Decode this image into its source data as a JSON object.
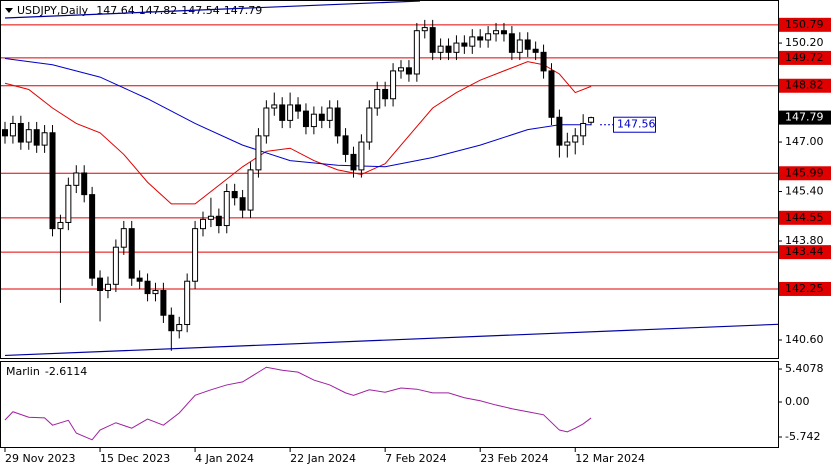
{
  "chart_data": [
    {
      "type": "candlestick",
      "title": "USDJPY,Daily",
      "categories": [
        "29 Nov 2023",
        null,
        null,
        null,
        null,
        null,
        null,
        null,
        null,
        null,
        null,
        null,
        "15 Dec 2023",
        null,
        null,
        null,
        null,
        null,
        null,
        null,
        null,
        null,
        null,
        null,
        "4 Jan 2024",
        null,
        null,
        null,
        null,
        null,
        null,
        null,
        null,
        null,
        null,
        null,
        "22 Jan 2024",
        null,
        null,
        null,
        null,
        null,
        null,
        null,
        null,
        null,
        null,
        null,
        "7 Feb 2024",
        null,
        null,
        null,
        null,
        null,
        null,
        null,
        null,
        null,
        null,
        null,
        "23 Feb 2024",
        null,
        null,
        null,
        null,
        null,
        null,
        null,
        null,
        null,
        null,
        null,
        "12 Mar 2024",
        null,
        null
      ],
      "open": [
        147.4,
        147.2,
        147.6,
        147.0,
        147.4,
        146.9,
        147.3,
        144.2,
        144.4,
        145.6,
        146.0,
        145.3,
        142.6,
        142.2,
        142.4,
        143.6,
        144.2,
        142.6,
        142.5,
        142.1,
        142.2,
        141.4,
        140.9,
        141.1,
        142.5,
        144.2,
        144.5,
        144.6,
        144.3,
        145.4,
        145.2,
        144.8,
        146.1,
        147.2,
        148.1,
        148.2,
        147.7,
        148.2,
        148.0,
        147.5,
        147.9,
        147.7,
        148.1,
        147.2,
        146.6,
        146.1,
        147.0,
        148.1,
        148.7,
        148.4,
        149.3,
        149.4,
        149.2,
        150.6,
        150.7,
        149.9,
        150.1,
        149.9,
        150.2,
        150.1,
        150.4,
        150.3,
        150.5,
        150.6,
        150.5,
        149.9,
        150.3,
        150.0,
        149.9,
        149.3,
        147.8,
        146.9,
        147.0,
        147.2,
        147.64
      ],
      "high": [
        147.65,
        147.85,
        147.85,
        147.65,
        147.65,
        147.55,
        147.55,
        144.65,
        145.85,
        146.25,
        146.25,
        145.55,
        142.85,
        142.65,
        143.85,
        144.45,
        144.45,
        142.85,
        142.75,
        142.45,
        142.45,
        141.65,
        141.35,
        142.75,
        144.45,
        144.75,
        145.2,
        144.85,
        145.65,
        145.65,
        145.45,
        146.35,
        147.45,
        148.35,
        148.6,
        148.45,
        148.6,
        148.45,
        148.25,
        148.15,
        148.15,
        148.35,
        148.35,
        147.45,
        146.85,
        147.25,
        148.35,
        148.95,
        148.95,
        149.55,
        149.65,
        149.65,
        150.85,
        150.95,
        150.95,
        150.35,
        150.35,
        150.45,
        150.45,
        150.65,
        150.65,
        150.75,
        150.85,
        150.85,
        150.75,
        150.55,
        150.55,
        150.25,
        150.15,
        149.55,
        148.05,
        147.3,
        147.45,
        147.9,
        147.82
      ],
      "low": [
        146.95,
        146.95,
        146.75,
        146.75,
        146.65,
        146.65,
        143.95,
        141.8,
        144.15,
        145.35,
        145.05,
        142.35,
        141.2,
        141.95,
        142.15,
        143.35,
        142.35,
        142.25,
        141.85,
        141.85,
        141.15,
        140.25,
        140.65,
        140.85,
        142.25,
        143.95,
        144.25,
        144.05,
        144.05,
        144.95,
        144.55,
        144.55,
        145.85,
        146.95,
        147.85,
        147.45,
        147.45,
        147.75,
        147.25,
        147.25,
        147.45,
        147.45,
        146.95,
        146.35,
        145.85,
        145.85,
        146.75,
        147.85,
        148.15,
        148.15,
        149.05,
        148.95,
        148.95,
        150.35,
        149.65,
        149.65,
        149.65,
        149.65,
        149.85,
        149.85,
        150.05,
        150.05,
        150.25,
        150.25,
        149.65,
        149.65,
        149.75,
        149.65,
        149.05,
        147.55,
        146.5,
        146.5,
        146.6,
        146.9,
        147.54
      ],
      "close": [
        147.2,
        147.6,
        147.0,
        147.4,
        146.9,
        147.3,
        144.2,
        144.4,
        145.6,
        146.0,
        145.3,
        142.6,
        142.2,
        142.4,
        143.6,
        144.2,
        142.6,
        142.5,
        142.1,
        142.2,
        141.4,
        140.9,
        141.1,
        142.5,
        144.2,
        144.5,
        144.6,
        144.3,
        145.4,
        145.2,
        144.8,
        146.1,
        147.2,
        148.1,
        148.2,
        147.7,
        148.2,
        148.0,
        147.5,
        147.9,
        147.7,
        148.1,
        147.2,
        146.6,
        146.1,
        147.0,
        148.1,
        148.7,
        148.4,
        149.3,
        149.4,
        149.2,
        150.6,
        150.7,
        149.9,
        150.1,
        149.9,
        150.2,
        150.1,
        150.4,
        150.3,
        150.5,
        150.6,
        150.5,
        149.9,
        150.3,
        150.0,
        149.9,
        149.3,
        147.8,
        146.9,
        147.0,
        147.2,
        147.6,
        147.79
      ],
      "up_color": "#ffffff",
      "down_color": "#000000",
      "moving_averages": [
        {
          "color": "#e00000",
          "x": [
            0,
            3,
            6,
            9,
            12,
            15,
            18,
            21,
            24,
            27,
            30,
            33,
            36,
            39,
            42,
            45,
            48,
            51,
            54,
            57,
            60,
            63,
            66,
            68,
            70,
            72,
            74
          ],
          "values": [
            148.9,
            148.7,
            148.1,
            147.6,
            147.3,
            146.6,
            145.7,
            145.0,
            145.0,
            145.6,
            146.2,
            146.7,
            146.8,
            146.4,
            146.1,
            145.95,
            146.3,
            147.2,
            148.1,
            148.6,
            149.0,
            149.3,
            149.6,
            149.5,
            149.2,
            148.6,
            148.8
          ]
        },
        {
          "color": "#0000c8",
          "x": [
            0,
            6,
            12,
            18,
            24,
            30,
            36,
            42,
            48,
            54,
            60,
            66,
            70,
            74
          ],
          "values": [
            149.7,
            149.5,
            149.1,
            148.4,
            147.6,
            146.9,
            146.4,
            146.25,
            146.2,
            146.5,
            146.9,
            147.4,
            147.56,
            147.56
          ]
        }
      ],
      "levels": {
        "color": "#e00000",
        "values": [
          150.79,
          149.72,
          148.82,
          145.99,
          144.55,
          143.44,
          142.25
        ]
      },
      "trendlines": [
        {
          "color": "#0000a0",
          "x": [
            0,
            52.4
          ],
          "values": [
            151.01,
            151.56
          ]
        },
        {
          "color": "#0000a0",
          "x": [
            0,
            97.9
          ],
          "values": [
            140.1,
            141.11
          ]
        }
      ],
      "ylim": [
        140.05,
        151.56
      ],
      "yticks": [
        {
          "value": 150.2,
          "label": "150.20"
        },
        {
          "value": 147,
          "label": "147.00"
        },
        {
          "value": 145.4,
          "label": "145.40"
        },
        {
          "value": 143.8,
          "label": "143.80"
        },
        {
          "value": 140.6,
          "label": "140.60"
        }
      ],
      "grid": false
    },
    {
      "type": "line",
      "title": "Marlin",
      "x": [
        0,
        1,
        3,
        5,
        6,
        8,
        9,
        11,
        12,
        14,
        16,
        18,
        20,
        22,
        24,
        26,
        28,
        30,
        32,
        33,
        35,
        37,
        39,
        41,
        43,
        44,
        46,
        48,
        50,
        52,
        54,
        56,
        58,
        60,
        62,
        64,
        66,
        68,
        70,
        71,
        72,
        73,
        74
      ],
      "series": [
        {
          "color": "#a020a0",
          "values": [
            -2.95,
            -1.6,
            -2.5,
            -2.6,
            -3.8,
            -3.0,
            -5.1,
            -6.2,
            -4.6,
            -3.4,
            -4.3,
            -2.8,
            -3.8,
            -1.8,
            1.1,
            2.0,
            2.8,
            3.3,
            4.9,
            5.7,
            5.2,
            4.9,
            3.6,
            2.8,
            1.5,
            1.1,
            2.0,
            1.6,
            2.3,
            2.1,
            1.5,
            1.5,
            0.7,
            0.2,
            -0.5,
            -1.1,
            -1.6,
            -2.1,
            -4.6,
            -4.9,
            -4.3,
            -3.6,
            -2.6114
          ]
        }
      ],
      "ylim": [
        -7.38,
        6.56
      ],
      "yticks": [
        5.4078,
        {
          "value": 0,
          "label": "0.00"
        },
        -5.742
      ],
      "grid": false
    }
  ]
}
